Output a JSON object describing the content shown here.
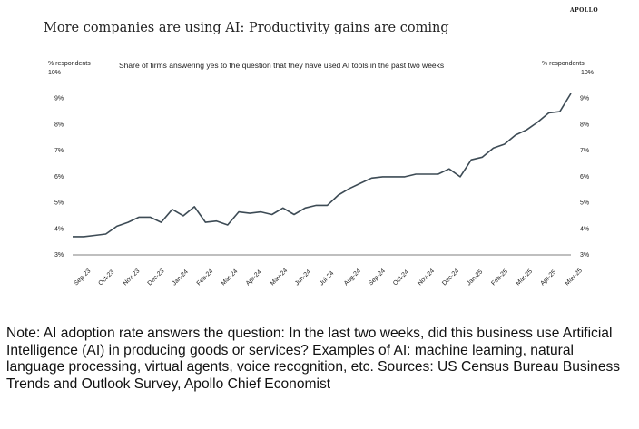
{
  "brand": "APOLLO",
  "note": "Note: AI adoption rate answers the question: In the last two weeks, did this business use Artificial Intelligence (AI) in producing goods or services? Examples of AI: machine learning, natural language processing, virtual agents, voice recognition, etc. Sources: US Census Bureau Business Trends and Outlook Survey, Apollo Chief Economist",
  "chart_data": {
    "type": "line",
    "title": "More companies are using AI: Productivity gains are coming",
    "subtitle": "Share of firms answering yes to the question that they have used AI tools in the past two weeks",
    "ylabel": "% respondents",
    "ylabel_right": "% respondents",
    "ylim": [
      3,
      10
    ],
    "yticks": [
      3,
      4,
      5,
      6,
      7,
      8,
      9,
      10
    ],
    "ytick_labels": [
      "3%",
      "4%",
      "5%",
      "6%",
      "7%",
      "8%",
      "9%",
      "10%"
    ],
    "categories": [
      "Sep-23",
      "Oct-23",
      "Nov-23",
      "Dec-23",
      "Jan-24",
      "Feb-24",
      "Mar-24",
      "Apr-24",
      "May-24",
      "Jun-24",
      "Jul-24",
      "Aug-24",
      "Sep-24",
      "Oct-24",
      "Nov-24",
      "Dec-24",
      "Jan-25",
      "Feb-25",
      "Mar-25",
      "Apr-25",
      "May-25"
    ],
    "grid": false,
    "line_color": "#3d4b55",
    "series": [
      {
        "values": [
          3.7,
          3.7,
          3.75,
          3.8,
          4.1,
          4.25,
          4.45,
          4.45,
          4.25,
          4.75,
          4.5,
          4.85,
          4.25,
          4.3,
          4.15,
          4.65,
          4.6,
          4.65,
          4.55,
          4.8,
          4.55,
          4.8,
          4.9,
          4.9,
          5.3,
          5.55,
          5.75,
          5.95,
          6.0,
          6.0,
          6.0,
          6.1,
          6.1,
          6.1,
          6.3,
          6.0,
          6.65,
          6.75,
          7.1,
          7.25,
          7.6,
          7.8,
          8.1,
          8.45,
          8.5,
          9.2
        ],
        "x": [
          0,
          0.5,
          1,
          1.5,
          2,
          2.5,
          3,
          3.5,
          4,
          4.5,
          5,
          5.5,
          6,
          6.5,
          7,
          7.5,
          8,
          8.5,
          9,
          9.5,
          10,
          10.5,
          11,
          11.5,
          12,
          12.5,
          13,
          13.5,
          14,
          14.5,
          15,
          15.5,
          16,
          16.5,
          17,
          17.5,
          18,
          18.5,
          19,
          19.5,
          20,
          20.5,
          21,
          21.5,
          22,
          22.5
        ]
      }
    ]
  }
}
